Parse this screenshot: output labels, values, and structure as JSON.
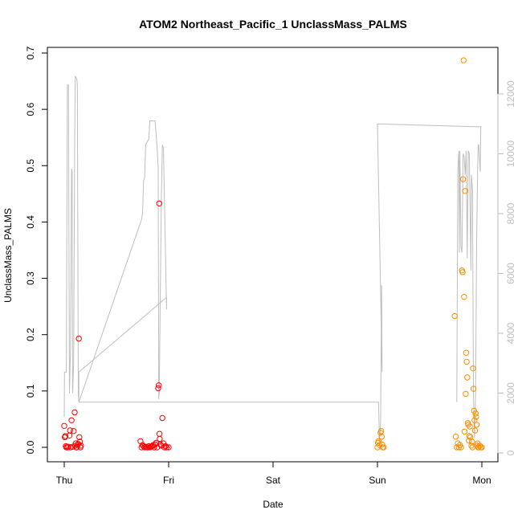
{
  "chart_data": {
    "type": "scatter",
    "title": "ATOM2 Northeast_Pacific_1 UnclassMass_PALMS",
    "xlabel": "Date",
    "ylabel": "UnclassMass_PALMS",
    "x_tick_labels": [
      "Thu",
      "Fri",
      "Sat",
      "Sun",
      "Mon"
    ],
    "xlim": [
      0,
      4.1
    ],
    "ylim": [
      0,
      0.7
    ],
    "y_ticks": [
      "0.0",
      "0.1",
      "0.2",
      "0.3",
      "0.4",
      "0.5",
      "0.6",
      "0.7"
    ],
    "y2_ticks": [
      "0",
      "2000",
      "4000",
      "6000",
      "8000",
      "10000",
      "12000"
    ],
    "y2lim": [
      0,
      12800
    ],
    "grid": false,
    "colors": {
      "day1": "#ff0000",
      "day2": "#ff8c00",
      "altitude_line": "#bebebe",
      "axis_right": "#bdbdbd"
    },
    "series": [
      {
        "color": "red",
        "points": [
          [
            0.0,
            0.038
          ],
          [
            0.005,
            0.018
          ],
          [
            0.01,
            0.02
          ],
          [
            0.015,
            0.002
          ],
          [
            0.02,
            0.0
          ],
          [
            0.03,
            0.0
          ],
          [
            0.04,
            0.001
          ],
          [
            0.05,
            0.021
          ],
          [
            0.055,
            0.03
          ],
          [
            0.06,
            0.0
          ],
          [
            0.07,
            0.048
          ],
          [
            0.08,
            0.001
          ],
          [
            0.09,
            0.029
          ],
          [
            0.1,
            0.062
          ],
          [
            0.105,
            0.003
          ],
          [
            0.11,
            0.007
          ],
          [
            0.115,
            0.0
          ],
          [
            0.12,
            0.0
          ],
          [
            0.13,
            0.005
          ],
          [
            0.135,
            0.006
          ],
          [
            0.14,
            0.193
          ],
          [
            0.145,
            0.018
          ],
          [
            0.15,
            0.01
          ],
          [
            0.155,
            0.0
          ],
          [
            0.16,
            0.003
          ],
          [
            0.73,
            0.011
          ],
          [
            0.74,
            0.0
          ],
          [
            0.75,
            0.004
          ],
          [
            0.76,
            0.002
          ],
          [
            0.77,
            0.0
          ],
          [
            0.78,
            0.001
          ],
          [
            0.79,
            0.0
          ],
          [
            0.8,
            0.0
          ],
          [
            0.81,
            0.002
          ],
          [
            0.82,
            0.0
          ],
          [
            0.83,
            0.001
          ],
          [
            0.84,
            0.002
          ],
          [
            0.85,
            0.004
          ],
          [
            0.86,
            0.0
          ],
          [
            0.87,
            0.005
          ],
          [
            0.88,
            0.008
          ],
          [
            0.89,
            0.0
          ],
          [
            0.9,
            0.105
          ],
          [
            0.905,
            0.11
          ],
          [
            0.91,
            0.433
          ],
          [
            0.912,
            0.024
          ],
          [
            0.915,
            0.015
          ],
          [
            0.92,
            0.005
          ],
          [
            0.93,
            0.003
          ],
          [
            0.94,
            0.052
          ],
          [
            0.95,
            0.007
          ],
          [
            0.96,
            0.0
          ],
          [
            0.97,
            0.002
          ],
          [
            0.98,
            0.0
          ],
          [
            1.0,
            0.0
          ]
        ]
      },
      {
        "color": "orange",
        "points": [
          [
            3.0,
            0.0
          ],
          [
            3.005,
            0.008
          ],
          [
            3.01,
            0.011
          ],
          [
            3.02,
            0.004
          ],
          [
            3.03,
            0.026
          ],
          [
            3.035,
            0.029
          ],
          [
            3.04,
            0.019
          ],
          [
            3.045,
            0.005
          ],
          [
            3.05,
            0.0
          ],
          [
            3.06,
            0.0
          ],
          [
            3.74,
            0.233
          ],
          [
            3.75,
            0.019
          ],
          [
            3.76,
            0.0
          ],
          [
            3.77,
            0.007
          ],
          [
            3.78,
            0.0
          ],
          [
            3.79,
            0.004
          ],
          [
            3.8,
            0.0
          ],
          [
            3.81,
            0.314
          ],
          [
            3.815,
            0.311
          ],
          [
            3.82,
            0.476
          ],
          [
            3.825,
            0.687
          ],
          [
            3.83,
            0.267
          ],
          [
            3.835,
            0.028
          ],
          [
            3.84,
            0.455
          ],
          [
            3.845,
            0.095
          ],
          [
            3.85,
            0.168
          ],
          [
            3.855,
            0.152
          ],
          [
            3.86,
            0.124
          ],
          [
            3.865,
            0.043
          ],
          [
            3.87,
            0.04
          ],
          [
            3.875,
            0.012
          ],
          [
            3.88,
            0.02
          ],
          [
            3.885,
            0.037
          ],
          [
            3.89,
            0.018
          ],
          [
            3.9,
            0.003
          ],
          [
            3.905,
            0.01
          ],
          [
            3.91,
            0.0
          ],
          [
            3.915,
            0.14
          ],
          [
            3.92,
            0.104
          ],
          [
            3.925,
            0.065
          ],
          [
            3.93,
            0.048
          ],
          [
            3.935,
            0.03
          ],
          [
            3.94,
            0.06
          ],
          [
            3.945,
            0.054
          ],
          [
            3.95,
            0.04
          ],
          [
            3.955,
            0.003
          ],
          [
            3.96,
            0.007
          ],
          [
            3.965,
            0.0
          ],
          [
            3.97,
            0.0
          ],
          [
            3.98,
            0.003
          ],
          [
            3.99,
            0.0
          ],
          [
            4.0,
            0.0
          ]
        ]
      }
    ],
    "altitude_line": {
      "color": "gray",
      "points": [
        [
          0.0,
          1200
        ],
        [
          0.002,
          2700
        ],
        [
          0.02,
          2700
        ],
        [
          0.025,
          8000
        ],
        [
          0.03,
          12300
        ],
        [
          0.04,
          12300
        ],
        [
          0.05,
          2000
        ],
        [
          0.06,
          3500
        ],
        [
          0.07,
          9500
        ],
        [
          0.075,
          9400
        ],
        [
          0.08,
          2000
        ],
        [
          0.09,
          3000
        ],
        [
          0.1,
          10500
        ],
        [
          0.105,
          12600
        ],
        [
          0.12,
          12500
        ],
        [
          0.125,
          12300
        ],
        [
          0.135,
          2000
        ],
        [
          0.14,
          1700
        ],
        [
          0.14,
          2700
        ],
        [
          0.98,
          5200
        ],
        [
          0.98,
          4800
        ],
        [
          0.95,
          10200
        ],
        [
          0.94,
          10300
        ],
        [
          0.93,
          8500
        ],
        [
          0.91,
          2000
        ],
        [
          0.905,
          1800
        ],
        [
          0.9,
          9500
        ],
        [
          0.89,
          10200
        ],
        [
          0.87,
          11100
        ],
        [
          0.82,
          11100
        ],
        [
          0.81,
          10500
        ],
        [
          0.78,
          10300
        ],
        [
          0.77,
          9200
        ],
        [
          0.76,
          9100
        ],
        [
          0.75,
          8000
        ],
        [
          0.74,
          7800
        ],
        [
          0.14,
          1700
        ],
        [
          3.0,
          1700
        ],
        [
          3.01,
          1700
        ],
        [
          3.02,
          300
        ],
        [
          3.03,
          1000
        ],
        [
          3.04,
          5600
        ],
        [
          3.045,
          2700
        ],
        [
          3.0,
          11000
        ],
        [
          4.0,
          10900
        ],
        [
          3.99,
          10900
        ],
        [
          3.985,
          9400
        ],
        [
          3.97,
          10300
        ],
        [
          3.965,
          10300
        ],
        [
          3.96,
          9500
        ],
        [
          3.95,
          7100
        ],
        [
          3.94,
          2000
        ],
        [
          3.93,
          500
        ],
        [
          3.92,
          1800
        ],
        [
          3.91,
          8800
        ],
        [
          3.9,
          9300
        ],
        [
          3.895,
          6100
        ],
        [
          3.88,
          10000
        ],
        [
          3.87,
          10100
        ],
        [
          3.86,
          6500
        ],
        [
          3.85,
          10100
        ],
        [
          3.84,
          9300
        ],
        [
          3.83,
          9900
        ],
        [
          3.82,
          10000
        ],
        [
          3.81,
          6700
        ],
        [
          3.8,
          6900
        ],
        [
          3.79,
          10100
        ],
        [
          3.785,
          6700
        ],
        [
          3.78,
          10100
        ],
        [
          3.77,
          9500
        ],
        [
          3.76,
          1700
        ]
      ]
    }
  }
}
